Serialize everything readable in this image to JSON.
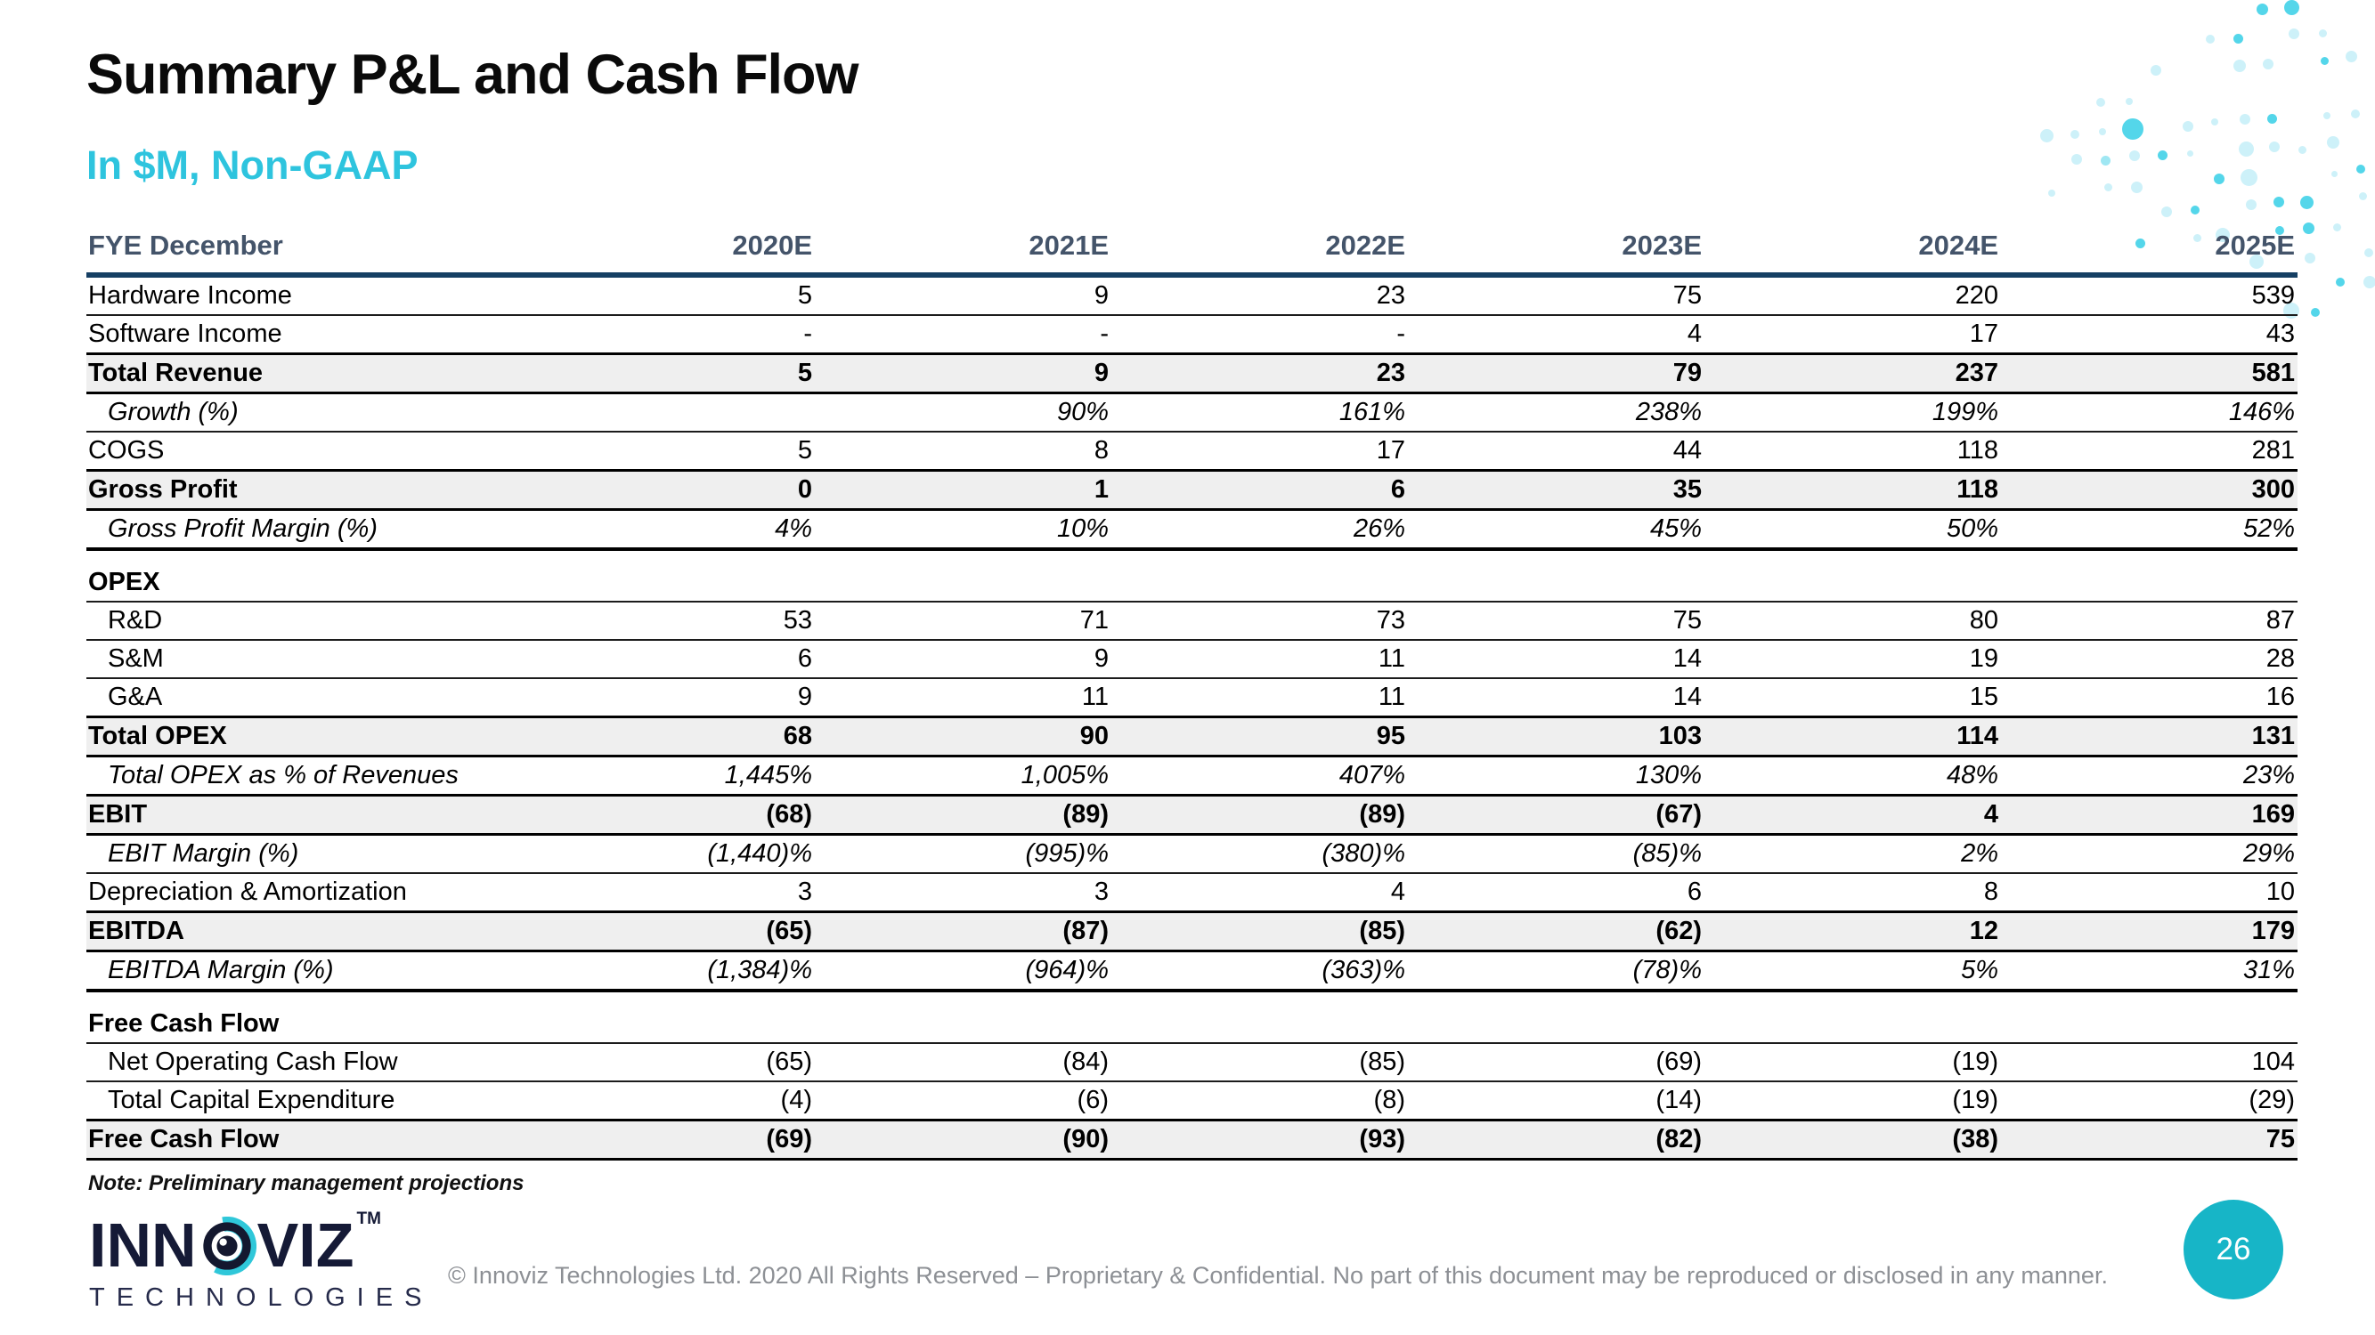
{
  "slide": {
    "title": "Summary P&L and Cash Flow",
    "subtitle": "In $M, Non-GAAP",
    "note": "Note: Preliminary management projections",
    "copyright": "© Innoviz Technologies Ltd. 2020 All Rights Reserved – Proprietary & Confidential. No part of this document may be reproduced or disclosed in any manner.",
    "page_number": "26"
  },
  "logo": {
    "word_start": "INN",
    "word_end": "VIZ",
    "tm": "TM",
    "sub": "TECHNOLOGIES",
    "o_icon": "innoviz-eye-icon"
  },
  "colors": {
    "accent_cyan": "#2ec4de",
    "header_text": "#44546a",
    "header_rule_navy": "#153f63",
    "total_row_gray": "#efefef",
    "page_circle_teal": "#17b5c7",
    "logo_navy": "#151a36",
    "logo_teal": "#2fc7d9",
    "copyright_gray": "#8d9095"
  },
  "table": {
    "header_label": "FYE December",
    "columns": [
      "2020E",
      "2021E",
      "2022E",
      "2023E",
      "2024E",
      "2025E"
    ],
    "rows": [
      {
        "label": "Hardware Income",
        "values": [
          "5",
          "9",
          "23",
          "75",
          "220",
          "539"
        ],
        "style": "normal"
      },
      {
        "label": "Software Income",
        "values": [
          "-",
          "-",
          "-",
          "4",
          "17",
          "43"
        ],
        "style": "normal"
      },
      {
        "label": "Total Revenue",
        "values": [
          "5",
          "9",
          "23",
          "79",
          "237",
          "581"
        ],
        "style": "total"
      },
      {
        "label": "Growth (%)",
        "values": [
          "",
          "90%",
          "161%",
          "238%",
          "199%",
          "146%"
        ],
        "style": "italic"
      },
      {
        "label": "COGS",
        "values": [
          "5",
          "8",
          "17",
          "44",
          "118",
          "281"
        ],
        "style": "normal"
      },
      {
        "label": "Gross Profit",
        "values": [
          "0",
          "1",
          "6",
          "35",
          "118",
          "300"
        ],
        "style": "total"
      },
      {
        "label": "Gross Profit Margin (%)",
        "values": [
          "4%",
          "10%",
          "26%",
          "45%",
          "50%",
          "52%"
        ],
        "style": "italic secend"
      },
      {
        "style": "gap"
      },
      {
        "label": "OPEX",
        "values": [
          "",
          "",
          "",
          "",
          "",
          ""
        ],
        "style": "section"
      },
      {
        "label": "R&D",
        "values": [
          "53",
          "71",
          "73",
          "75",
          "80",
          "87"
        ],
        "style": "indent"
      },
      {
        "label": "S&M",
        "values": [
          "6",
          "9",
          "11",
          "14",
          "19",
          "28"
        ],
        "style": "indent"
      },
      {
        "label": "G&A",
        "values": [
          "9",
          "11",
          "11",
          "14",
          "15",
          "16"
        ],
        "style": "indent"
      },
      {
        "label": "Total OPEX",
        "values": [
          "68",
          "90",
          "95",
          "103",
          "114",
          "131"
        ],
        "style": "total"
      },
      {
        "label": "Total OPEX as % of Revenues",
        "values": [
          "1,445%",
          "1,005%",
          "407%",
          "130%",
          "48%",
          "23%"
        ],
        "style": "italic"
      },
      {
        "label": "EBIT",
        "values": [
          "(68)",
          "(89)",
          "(89)",
          "(67)",
          "4",
          "169"
        ],
        "style": "total"
      },
      {
        "label": "EBIT Margin (%)",
        "values": [
          "(1,440)%",
          "(995)%",
          "(380)%",
          "(85)%",
          "2%",
          "29%"
        ],
        "style": "italic"
      },
      {
        "label": "Depreciation & Amortization",
        "values": [
          "3",
          "3",
          "4",
          "6",
          "8",
          "10"
        ],
        "style": "normal"
      },
      {
        "label": "EBITDA",
        "values": [
          "(65)",
          "(87)",
          "(85)",
          "(62)",
          "12",
          "179"
        ],
        "style": "total"
      },
      {
        "label": "EBITDA Margin (%)",
        "values": [
          "(1,384)%",
          "(964)%",
          "(363)%",
          "(78)%",
          "5%",
          "31%"
        ],
        "style": "italic secend"
      },
      {
        "style": "gap"
      },
      {
        "label": "Free Cash Flow",
        "values": [
          "",
          "",
          "",
          "",
          "",
          ""
        ],
        "style": "section"
      },
      {
        "label": "Net Operating Cash Flow",
        "values": [
          "(65)",
          "(84)",
          "(85)",
          "(69)",
          "(19)",
          "104"
        ],
        "style": "indent"
      },
      {
        "label": "Total Capital Expenditure",
        "values": [
          "(4)",
          "(6)",
          "(8)",
          "(14)",
          "(19)",
          "(29)"
        ],
        "style": "indent"
      },
      {
        "label": "Free Cash Flow",
        "values": [
          "(69)",
          "(90)",
          "(93)",
          "(82)",
          "(38)",
          "75"
        ],
        "style": "total"
      }
    ]
  }
}
